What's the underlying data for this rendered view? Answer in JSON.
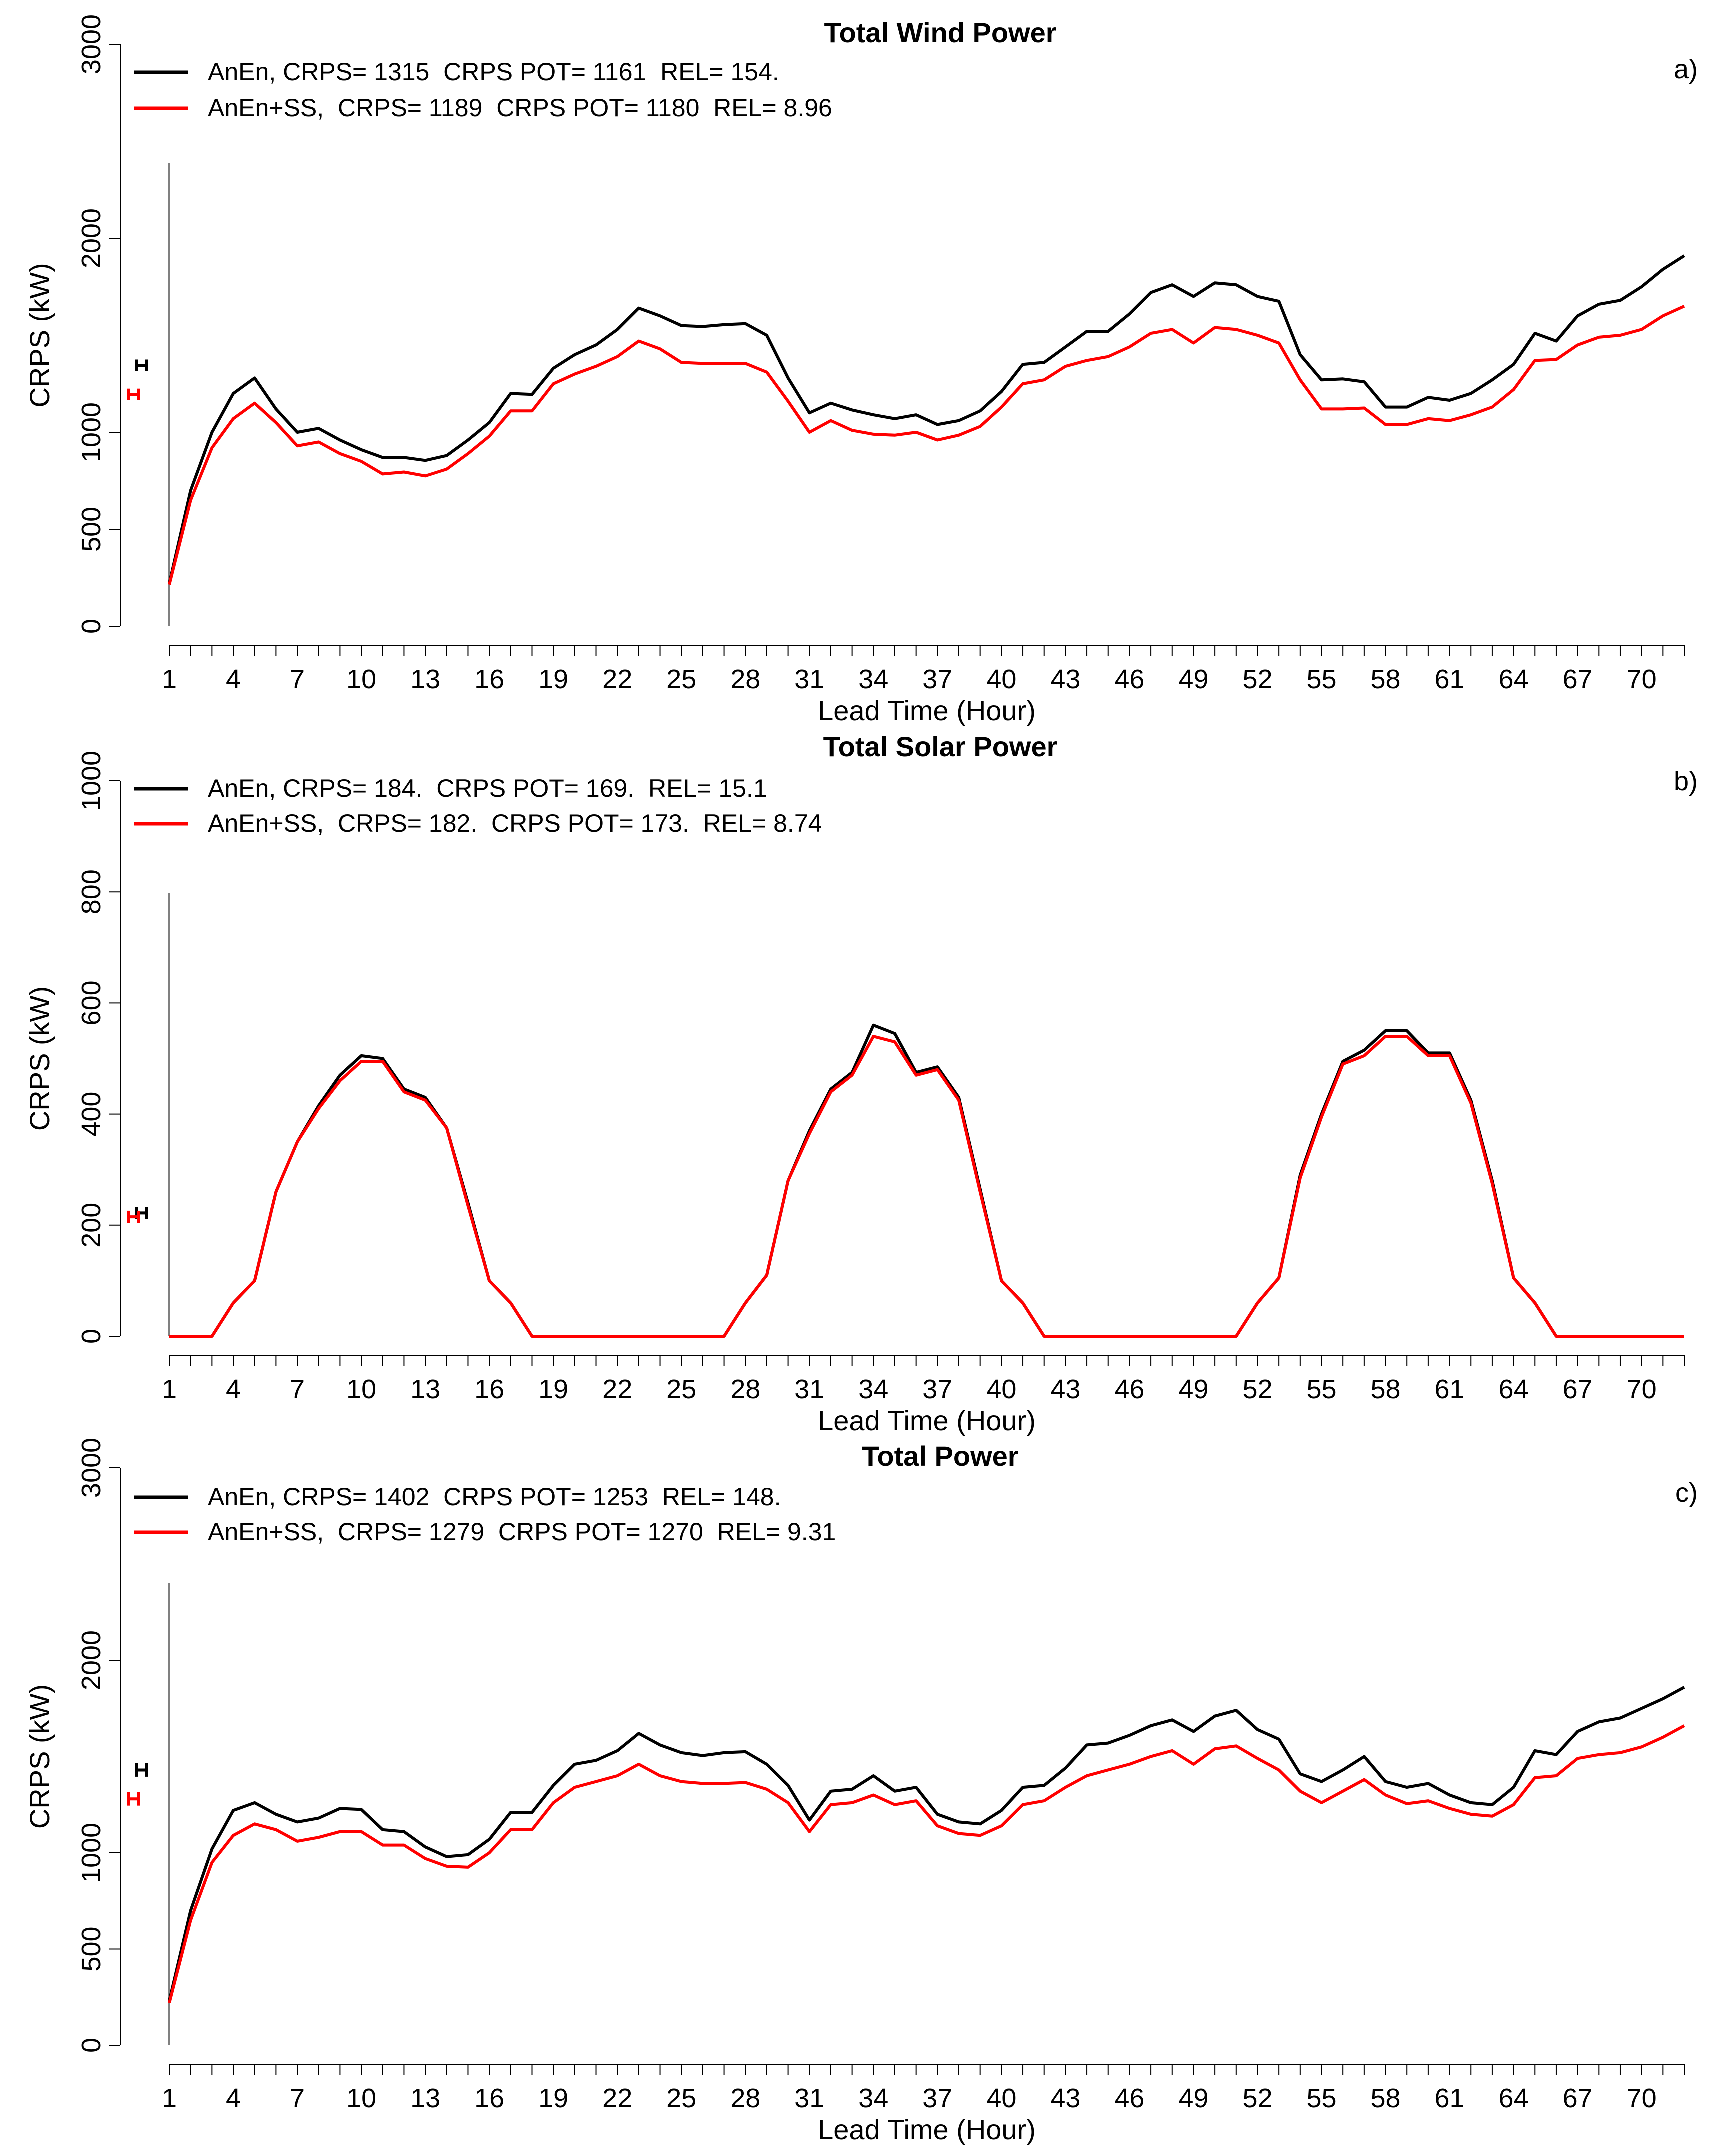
{
  "chart_data": [
    {
      "type": "line",
      "panel_label": "a)",
      "title": "Total Wind Power",
      "xlabel": "Lead Time (Hour)",
      "ylabel": "CRPS (kW)",
      "xlim": [
        1,
        72
      ],
      "ylim": [
        0,
        3000
      ],
      "yticks": [
        0,
        500,
        1000,
        2000,
        3000
      ],
      "xticks": [
        1,
        4,
        7,
        10,
        13,
        16,
        19,
        22,
        25,
        28,
        31,
        34,
        37,
        40,
        43,
        46,
        49,
        52,
        55,
        58,
        61,
        64,
        67,
        70
      ],
      "error_bars": [
        {
          "series": "AnEn",
          "center": 1345,
          "halfwidth": 30,
          "color": "#000000"
        },
        {
          "series": "AnEn+SS",
          "center": 1195,
          "halfwidth": 30,
          "color": "#ff0000"
        }
      ],
      "series": [
        {
          "name": "AnEn",
          "color": "#000000",
          "legend": "AnEn, CRPS= 1315  CRPS POT= 1161  REL= 154.",
          "values": [
            220,
            700,
            1000,
            1200,
            1280,
            1120,
            1000,
            1020,
            960,
            910,
            870,
            870,
            855,
            880,
            960,
            1050,
            1200,
            1195,
            1330,
            1400,
            1450,
            1530,
            1640,
            1600,
            1550,
            1545,
            1555,
            1560,
            1500,
            1280,
            1100,
            1150,
            1115,
            1090,
            1070,
            1090,
            1040,
            1060,
            1110,
            1210,
            1350,
            1360,
            1440,
            1520,
            1520,
            1610,
            1720,
            1760,
            1700,
            1770,
            1760,
            1700,
            1675,
            1400,
            1270,
            1275,
            1260,
            1130,
            1130,
            1180,
            1165,
            1200,
            1270,
            1350,
            1510,
            1470,
            1600,
            1660,
            1680,
            1750,
            1840,
            1910
          ]
        },
        {
          "name": "AnEn+SS",
          "color": "#ff0000",
          "legend": "AnEn+SS,  CRPS= 1189  CRPS POT= 1180  REL= 8.96",
          "values": [
            215,
            650,
            920,
            1070,
            1150,
            1050,
            930,
            950,
            890,
            850,
            785,
            795,
            775,
            810,
            890,
            980,
            1110,
            1110,
            1250,
            1300,
            1340,
            1390,
            1470,
            1430,
            1360,
            1355,
            1355,
            1355,
            1310,
            1160,
            1000,
            1060,
            1010,
            990,
            985,
            1000,
            960,
            985,
            1030,
            1130,
            1250,
            1270,
            1340,
            1370,
            1390,
            1440,
            1510,
            1530,
            1460,
            1540,
            1530,
            1500,
            1460,
            1270,
            1120,
            1120,
            1125,
            1040,
            1040,
            1070,
            1060,
            1090,
            1130,
            1220,
            1370,
            1375,
            1450,
            1490,
            1500,
            1530,
            1600,
            1650
          ]
        }
      ]
    },
    {
      "type": "line",
      "panel_label": "b)",
      "title": "Total Solar Power",
      "xlabel": "Lead Time (Hour)",
      "ylabel": "CRPS (kW)",
      "xlim": [
        1,
        72
      ],
      "ylim": [
        0,
        1000
      ],
      "yticks": [
        0,
        200,
        400,
        600,
        800,
        1000
      ],
      "xticks": [
        1,
        4,
        7,
        10,
        13,
        16,
        19,
        22,
        25,
        28,
        31,
        34,
        37,
        40,
        43,
        46,
        49,
        52,
        55,
        58,
        61,
        64,
        67,
        70
      ],
      "error_bars": [
        {
          "series": "AnEn",
          "center": 222,
          "halfwidth": 11,
          "color": "#000000"
        },
        {
          "series": "AnEn+SS",
          "center": 215,
          "halfwidth": 11,
          "color": "#ff0000"
        }
      ],
      "series": [
        {
          "name": "AnEn",
          "color": "#000000",
          "legend": "AnEn, CRPS= 184.  CRPS POT= 169.  REL= 15.1",
          "values": [
            0,
            0,
            0,
            60,
            100,
            260,
            350,
            415,
            470,
            505,
            500,
            445,
            430,
            375,
            240,
            100,
            60,
            0,
            0,
            0,
            0,
            0,
            0,
            0,
            0,
            0,
            0,
            60,
            110,
            280,
            370,
            445,
            475,
            560,
            545,
            475,
            485,
            430,
            265,
            100,
            60,
            0,
            0,
            0,
            0,
            0,
            0,
            0,
            0,
            0,
            0,
            60,
            105,
            290,
            400,
            495,
            515,
            550,
            550,
            510,
            510,
            425,
            280,
            105,
            60,
            0,
            0,
            0,
            0,
            0,
            0,
            0
          ]
        },
        {
          "name": "AnEn+SS",
          "color": "#ff0000",
          "legend": "AnEn+SS,  CRPS= 182.  CRPS POT= 173.  REL= 8.74",
          "values": [
            0,
            0,
            0,
            60,
            100,
            260,
            350,
            410,
            460,
            495,
            495,
            440,
            425,
            375,
            235,
            100,
            60,
            0,
            0,
            0,
            0,
            0,
            0,
            0,
            0,
            0,
            0,
            60,
            110,
            280,
            365,
            440,
            470,
            540,
            530,
            470,
            480,
            425,
            260,
            100,
            60,
            0,
            0,
            0,
            0,
            0,
            0,
            0,
            0,
            0,
            0,
            60,
            105,
            285,
            395,
            490,
            505,
            540,
            540,
            505,
            505,
            420,
            275,
            105,
            60,
            0,
            0,
            0,
            0,
            0,
            0,
            0
          ]
        }
      ]
    },
    {
      "type": "line",
      "panel_label": "c)",
      "title": "Total Power",
      "xlabel": "Lead Time (Hour)",
      "ylabel": "CRPS (kW)",
      "xlim": [
        1,
        72
      ],
      "ylim": [
        0,
        3000
      ],
      "yticks": [
        0,
        500,
        1000,
        2000,
        3000
      ],
      "xticks": [
        1,
        4,
        7,
        10,
        13,
        16,
        19,
        22,
        25,
        28,
        31,
        34,
        37,
        40,
        43,
        46,
        49,
        52,
        55,
        58,
        61,
        64,
        67,
        70
      ],
      "error_bars": [
        {
          "series": "AnEn",
          "center": 1430,
          "halfwidth": 35,
          "color": "#000000"
        },
        {
          "series": "AnEn+SS",
          "center": 1280,
          "halfwidth": 35,
          "color": "#ff0000"
        }
      ],
      "series": [
        {
          "name": "AnEn",
          "color": "#000000",
          "legend": "AnEn, CRPS= 1402  CRPS POT= 1253  REL= 148.",
          "values": [
            230,
            700,
            1020,
            1220,
            1260,
            1200,
            1160,
            1180,
            1230,
            1225,
            1120,
            1110,
            1030,
            980,
            990,
            1070,
            1210,
            1210,
            1350,
            1460,
            1480,
            1530,
            1620,
            1560,
            1520,
            1505,
            1520,
            1525,
            1460,
            1350,
            1170,
            1320,
            1330,
            1400,
            1320,
            1340,
            1200,
            1160,
            1150,
            1220,
            1340,
            1350,
            1440,
            1560,
            1570,
            1610,
            1660,
            1690,
            1630,
            1710,
            1740,
            1640,
            1590,
            1410,
            1370,
            1430,
            1500,
            1370,
            1340,
            1360,
            1300,
            1260,
            1250,
            1340,
            1530,
            1510,
            1630,
            1680,
            1700,
            1750,
            1800,
            1860
          ]
        },
        {
          "name": "AnEn+SS",
          "color": "#ff0000",
          "legend": "AnEn+SS,  CRPS= 1279  CRPS POT= 1270  REL= 9.31",
          "values": [
            220,
            650,
            950,
            1090,
            1150,
            1120,
            1060,
            1080,
            1110,
            1110,
            1040,
            1040,
            970,
            930,
            925,
            1000,
            1120,
            1120,
            1260,
            1340,
            1370,
            1400,
            1460,
            1400,
            1370,
            1360,
            1360,
            1365,
            1330,
            1260,
            1110,
            1250,
            1260,
            1300,
            1250,
            1270,
            1140,
            1100,
            1090,
            1140,
            1250,
            1270,
            1340,
            1400,
            1430,
            1460,
            1500,
            1530,
            1460,
            1540,
            1555,
            1490,
            1430,
            1320,
            1260,
            1320,
            1380,
            1300,
            1255,
            1270,
            1230,
            1200,
            1190,
            1250,
            1390,
            1400,
            1490,
            1510,
            1520,
            1550,
            1600,
            1660
          ]
        }
      ]
    }
  ]
}
